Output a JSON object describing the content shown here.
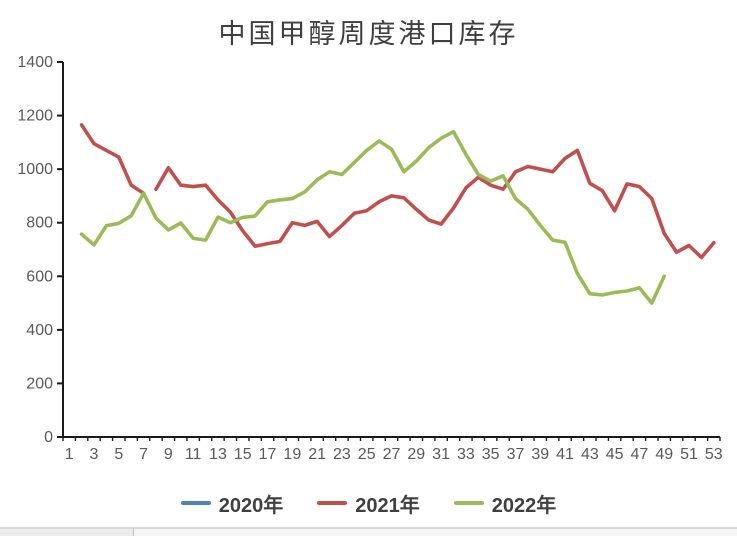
{
  "title": "中国甲醇周度港口库存",
  "chart_data": {
    "type": "line",
    "title": "中国甲醇周度港口库存",
    "grid": false,
    "legend_position": "bottom",
    "x_axis": {
      "weeks_min": 1,
      "weeks_max": 53,
      "tick_labels": [
        "1",
        "3",
        "5",
        "7",
        "9",
        "11",
        "13",
        "15",
        "17",
        "19",
        "21",
        "23",
        "25",
        "27",
        "29",
        "31",
        "33",
        "35",
        "37",
        "39",
        "41",
        "43",
        "45",
        "47",
        "49",
        "51",
        "53"
      ]
    },
    "y_axis": {
      "min": 0,
      "max": 1400,
      "step": 200,
      "tick_labels": [
        "0",
        "200",
        "400",
        "600",
        "800",
        "1000",
        "1200",
        "1400"
      ]
    },
    "series": [
      {
        "name": "2020年",
        "color": "#4F81BD",
        "start_week": null,
        "values": []
      },
      {
        "name": "2021年",
        "color": "#C0504D",
        "start_week": 2,
        "gap_after_week": 7,
        "values": [
          1165,
          1095,
          1070,
          1045,
          940,
          910,
          925,
          1005,
          940,
          935,
          940,
          885,
          840,
          770,
          712,
          722,
          730,
          800,
          790,
          805,
          748,
          790,
          835,
          845,
          878,
          900,
          893,
          850,
          810,
          795,
          855,
          930,
          970,
          940,
          925,
          990,
          1010,
          1000,
          990,
          1040,
          1070,
          947,
          920,
          845,
          945,
          935,
          890,
          760,
          690,
          715,
          670,
          725
        ]
      },
      {
        "name": "2022年",
        "color": "#9BBB59",
        "start_week": 2,
        "values": [
          757,
          717,
          789,
          798,
          826,
          910,
          817,
          773,
          799,
          742,
          735,
          821,
          800,
          820,
          825,
          878,
          885,
          890,
          915,
          960,
          990,
          980,
          1025,
          1070,
          1105,
          1075,
          990,
          1030,
          1080,
          1115,
          1140,
          1055,
          980,
          955,
          975,
          890,
          850,
          790,
          735,
          727,
          610,
          535,
          530,
          540,
          545,
          557,
          500,
          600
        ]
      }
    ],
    "axis_color": "#1a1a1a",
    "tick_label_color": "#595959"
  }
}
